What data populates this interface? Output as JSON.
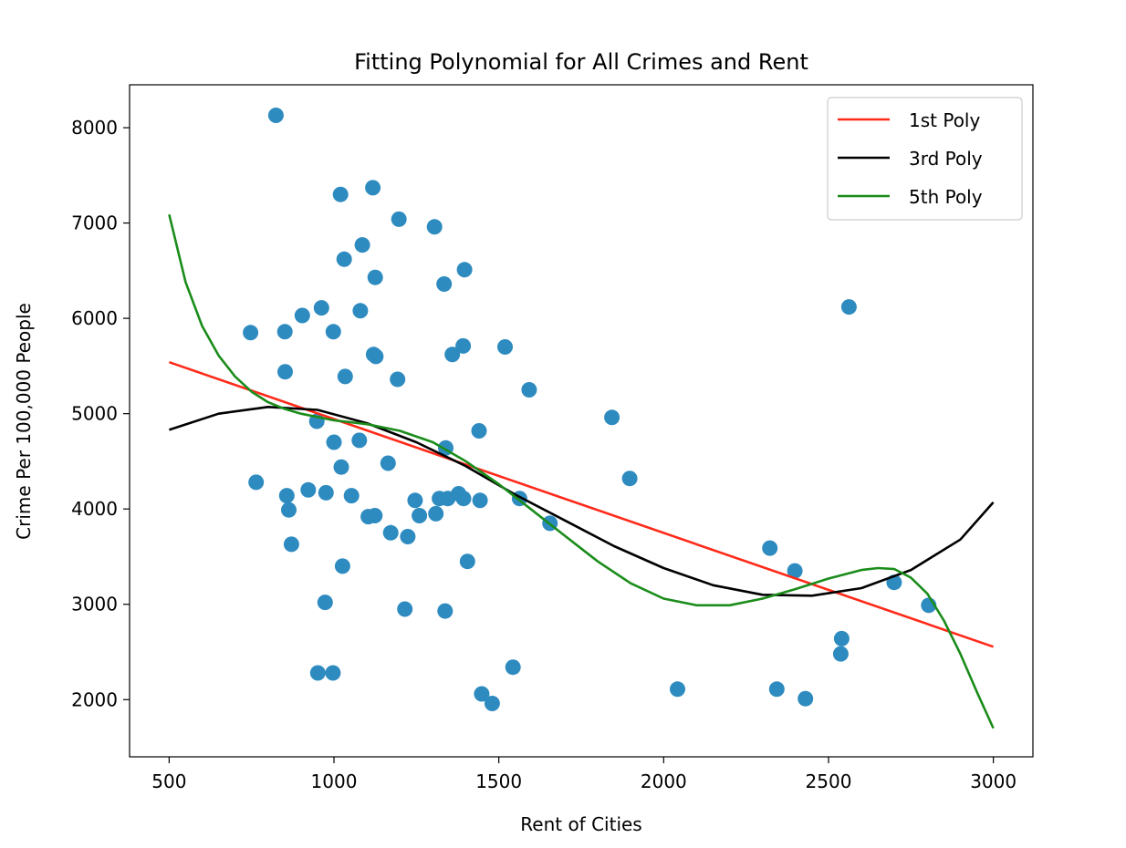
{
  "chart_data": {
    "type": "scatter",
    "title": "Fitting Polynomial for All Crimes and Rent",
    "xlabel": "Rent of Cities",
    "ylabel": "Crime Per 100,000 People",
    "xlim": [
      380,
      3120
    ],
    "ylim": [
      1400,
      8450
    ],
    "x_ticks": [
      500,
      1000,
      1500,
      2000,
      2500,
      3000
    ],
    "y_ticks": [
      2000,
      3000,
      4000,
      5000,
      6000,
      7000,
      8000
    ],
    "grid": false,
    "legend_position": "top-right",
    "point_color": "#2e8bc0",
    "points": [
      [
        824,
        8130
      ],
      [
        1020,
        7300
      ],
      [
        1118,
        7370
      ],
      [
        1197,
        7040
      ],
      [
        1305,
        6960
      ],
      [
        1031,
        6620
      ],
      [
        1086,
        6770
      ],
      [
        1125,
        6430
      ],
      [
        1334,
        6360
      ],
      [
        1396,
        6510
      ],
      [
        747,
        5850
      ],
      [
        851,
        5860
      ],
      [
        904,
        6030
      ],
      [
        962,
        6110
      ],
      [
        998,
        5860
      ],
      [
        1080,
        6080
      ],
      [
        1120,
        5620
      ],
      [
        1127,
        5600
      ],
      [
        1359,
        5620
      ],
      [
        1392,
        5710
      ],
      [
        1519,
        5700
      ],
      [
        2562,
        6120
      ],
      [
        852,
        5440
      ],
      [
        1034,
        5390
      ],
      [
        1193,
        5360
      ],
      [
        1592,
        5250
      ],
      [
        1843,
        4960
      ],
      [
        948,
        4920
      ],
      [
        1000,
        4700
      ],
      [
        1077,
        4720
      ],
      [
        1164,
        4480
      ],
      [
        1022,
        4440
      ],
      [
        1339,
        4640
      ],
      [
        1440,
        4820
      ],
      [
        764,
        4280
      ],
      [
        857,
        4140
      ],
      [
        922,
        4200
      ],
      [
        976,
        4170
      ],
      [
        1053,
        4140
      ],
      [
        863,
        3990
      ],
      [
        1104,
        3920
      ],
      [
        1124,
        3930
      ],
      [
        1246,
        4090
      ],
      [
        1259,
        3930
      ],
      [
        1309,
        3950
      ],
      [
        1320,
        4110
      ],
      [
        1345,
        4110
      ],
      [
        1378,
        4160
      ],
      [
        1393,
        4110
      ],
      [
        1443,
        4090
      ],
      [
        1563,
        4110
      ],
      [
        1655,
        3850
      ],
      [
        1897,
        4320
      ],
      [
        871,
        3630
      ],
      [
        1172,
        3750
      ],
      [
        1224,
        3710
      ],
      [
        1405,
        3450
      ],
      [
        1026,
        3400
      ],
      [
        2322,
        3590
      ],
      [
        2398,
        3350
      ],
      [
        973,
        3020
      ],
      [
        1215,
        2950
      ],
      [
        1337,
        2930
      ],
      [
        2699,
        3230
      ],
      [
        2804,
        2990
      ],
      [
        2540,
        2640
      ],
      [
        2537,
        2480
      ],
      [
        951,
        2280
      ],
      [
        997,
        2280
      ],
      [
        1543,
        2340
      ],
      [
        1448,
        2060
      ],
      [
        1480,
        1960
      ],
      [
        2042,
        2110
      ],
      [
        2343,
        2110
      ],
      [
        2430,
        2010
      ]
    ],
    "series": [
      {
        "name": "1st Poly",
        "color": "#ff2a1a",
        "degree": 1,
        "x": [
          500,
          3000
        ],
        "y": [
          5540,
          2555
        ]
      },
      {
        "name": "3rd Poly",
        "color": "#000000",
        "degree": 3,
        "x": [
          500,
          650,
          800,
          950,
          1100,
          1250,
          1400,
          1550,
          1700,
          1850,
          2000,
          2150,
          2300,
          2450,
          2600,
          2750,
          2900,
          3000
        ],
        "y": [
          4830,
          5000,
          5070,
          5040,
          4900,
          4700,
          4450,
          4150,
          3880,
          3610,
          3380,
          3200,
          3100,
          3090,
          3170,
          3360,
          3680,
          4070
        ]
      },
      {
        "name": "5th Poly",
        "color": "#1a8c1a",
        "degree": 5,
        "x": [
          500,
          550,
          600,
          650,
          700,
          750,
          800,
          850,
          900,
          1000,
          1100,
          1200,
          1300,
          1400,
          1500,
          1600,
          1700,
          1800,
          1900,
          2000,
          2100,
          2200,
          2300,
          2400,
          2500,
          2600,
          2650,
          2700,
          2750,
          2800,
          2850,
          2900,
          2950,
          3000
        ],
        "y": [
          7090,
          6380,
          5920,
          5610,
          5390,
          5230,
          5120,
          5050,
          5000,
          4930,
          4890,
          4820,
          4700,
          4500,
          4260,
          3990,
          3720,
          3450,
          3220,
          3060,
          2990,
          2990,
          3060,
          3160,
          3270,
          3360,
          3380,
          3370,
          3280,
          3110,
          2830,
          2480,
          2080,
          1700
        ]
      }
    ]
  }
}
